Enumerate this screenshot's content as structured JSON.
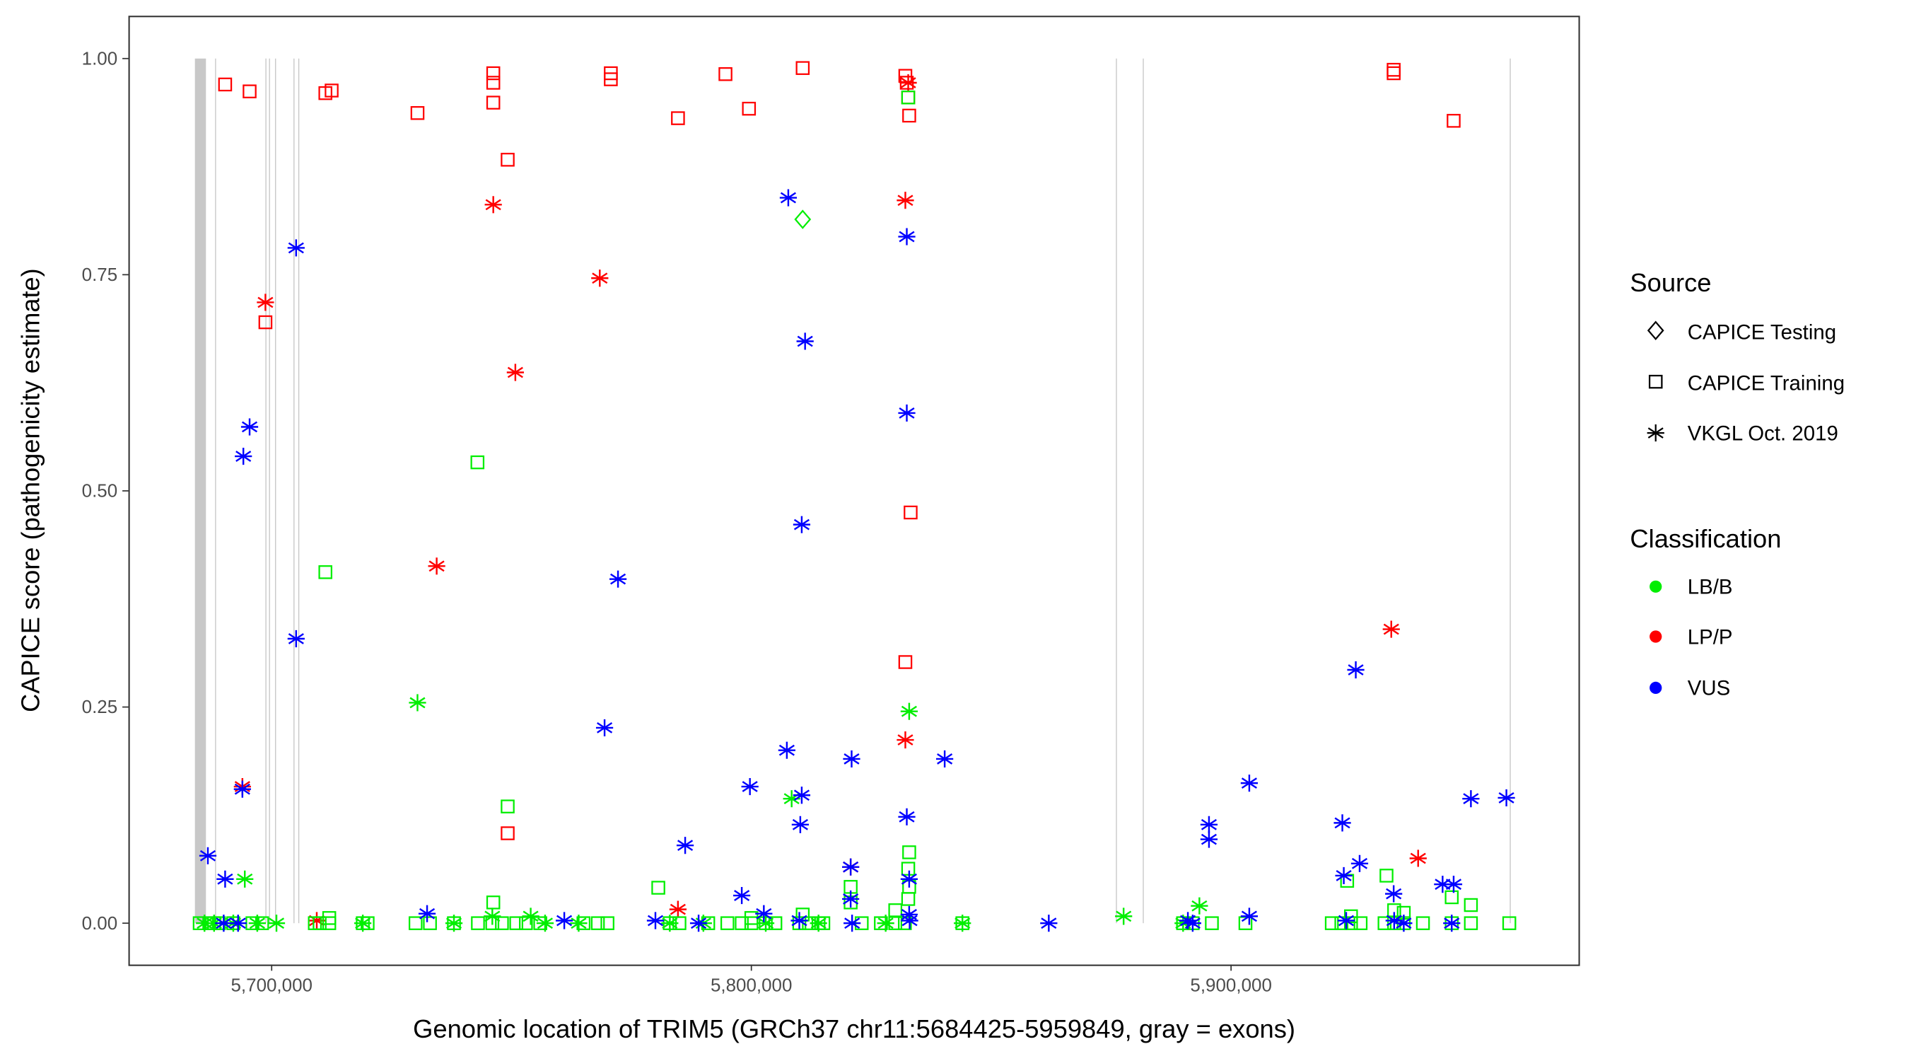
{
  "chart_data": {
    "type": "scatter",
    "xlabel": "Genomic location of TRIM5 (GRCh37 chr11:5684425-5959849, gray = exons)",
    "ylabel": "CAPICE score (pathogenicity estimate)",
    "xlim": [
      5668000,
      5970000
    ],
    "ylim": [
      -0.047,
      1.05
    ],
    "x_ticks": [
      5700000,
      5800000,
      5900000
    ],
    "x_tick_labels": [
      "5,700,000",
      "5,800,000",
      "5,900,000"
    ],
    "y_ticks": [
      0,
      0.25,
      0.5,
      0.75,
      1.0
    ],
    "y_tick_labels": [
      "0.00",
      "0.25",
      "0.50",
      "0.75",
      "1.00"
    ],
    "grid": false,
    "exons": [
      [
        5684000,
        5686300
      ],
      [
        5688200,
        5688300
      ],
      [
        5698700,
        5698800
      ],
      [
        5699450,
        5699550
      ],
      [
        5700700,
        5700800
      ],
      [
        5704550,
        5704650
      ],
      [
        5705550,
        5705650
      ],
      [
        5876000,
        5876100
      ],
      [
        5881600,
        5881700
      ],
      [
        5958100,
        5958200
      ]
    ],
    "exon_color": "#c8c8c8",
    "legend_position": "right",
    "legend": {
      "source_title": "Source",
      "source_items": [
        {
          "label": "CAPICE Testing",
          "shape": "diamond"
        },
        {
          "label": "CAPICE Training",
          "shape": "square"
        },
        {
          "label": "VKGL Oct. 2019",
          "shape": "asterisk"
        }
      ],
      "class_title": "Classification",
      "class_items": [
        {
          "label": "LB/B",
          "color": "#00ee00"
        },
        {
          "label": "LP/P",
          "color": "#ff0000"
        },
        {
          "label": "VUS",
          "color": "#0000ff"
        }
      ]
    },
    "series": [
      {
        "source": "CAPICE Training",
        "classification": "LP/P",
        "points": [
          [
            5690300,
            0.97
          ],
          [
            5695400,
            0.962
          ],
          [
            5711200,
            0.96
          ],
          [
            5712500,
            0.963
          ],
          [
            5730400,
            0.937
          ],
          [
            5746200,
            0.983
          ],
          [
            5746200,
            0.972
          ],
          [
            5746200,
            0.949
          ],
          [
            5749200,
            0.883
          ],
          [
            5770700,
            0.983
          ],
          [
            5770700,
            0.976
          ],
          [
            5784700,
            0.931
          ],
          [
            5794600,
            0.982
          ],
          [
            5799500,
            0.942
          ],
          [
            5810700,
            0.989
          ],
          [
            5832100,
            0.98
          ],
          [
            5832400,
            0.972
          ],
          [
            5832700,
            0.955
          ],
          [
            5832900,
            0.934
          ],
          [
            5698700,
            0.695
          ],
          [
            5749200,
            0.104
          ],
          [
            5833200,
            0.475
          ],
          [
            5832100,
            0.302
          ],
          [
            5933900,
            0.987
          ],
          [
            5933900,
            0.983
          ],
          [
            5946400,
            0.928
          ]
        ]
      },
      {
        "source": "VKGL Oct. 2019",
        "classification": "LP/P",
        "points": [
          [
            5698700,
            0.718
          ],
          [
            5693900,
            0.158
          ],
          [
            5746200,
            0.831
          ],
          [
            5768400,
            0.746
          ],
          [
            5750800,
            0.637
          ],
          [
            5734400,
            0.413
          ],
          [
            5832100,
            0.836
          ],
          [
            5832700,
            0.972
          ],
          [
            5832100,
            0.212
          ],
          [
            5933400,
            0.34
          ],
          [
            5939000,
            0.075
          ],
          [
            5784700,
            0.016
          ],
          [
            5709400,
            0.003
          ],
          [
            5820700,
            0.065
          ]
        ]
      },
      {
        "source": "CAPICE Training",
        "classification": "LB/B",
        "points": [
          [
            5711200,
            0.406
          ],
          [
            5742900,
            0.533
          ],
          [
            5749200,
            0.135
          ],
          [
            5780600,
            0.041
          ],
          [
            5746200,
            0.024
          ],
          [
            5832900,
            0.082
          ],
          [
            5832700,
            0.063
          ],
          [
            5832900,
            0.042
          ],
          [
            5832700,
            0.028
          ],
          [
            5832700,
            0.955
          ],
          [
            5932400,
            0.055
          ],
          [
            5924200,
            0.049
          ],
          [
            5950000,
            0.021
          ],
          [
            5820700,
            0.042
          ],
          [
            5820700,
            0.024
          ],
          [
            5810700,
            0.01
          ],
          [
            5830000,
            0.015
          ],
          [
            5685000,
            0
          ],
          [
            5687000,
            0
          ],
          [
            5688000,
            0
          ],
          [
            5689000,
            0
          ],
          [
            5692000,
            0
          ],
          [
            5696000,
            0
          ],
          [
            5698000,
            0
          ],
          [
            5709000,
            0
          ],
          [
            5710000,
            0
          ],
          [
            5712000,
            0
          ],
          [
            5712000,
            0.006
          ],
          [
            5719000,
            0
          ],
          [
            5720000,
            0
          ],
          [
            5730000,
            0
          ],
          [
            5733000,
            0
          ],
          [
            5738000,
            0
          ],
          [
            5743000,
            0
          ],
          [
            5746000,
            0
          ],
          [
            5748000,
            0
          ],
          [
            5751000,
            0
          ],
          [
            5753000,
            0
          ],
          [
            5756000,
            0
          ],
          [
            5765000,
            0
          ],
          [
            5768000,
            0
          ],
          [
            5770000,
            0
          ],
          [
            5783000,
            0
          ],
          [
            5785000,
            0
          ],
          [
            5791000,
            0
          ],
          [
            5795000,
            0
          ],
          [
            5798000,
            0
          ],
          [
            5800000,
            0
          ],
          [
            5800000,
            0.006
          ],
          [
            5803000,
            0
          ],
          [
            5805000,
            0
          ],
          [
            5810000,
            0
          ],
          [
            5812000,
            0
          ],
          [
            5814000,
            0
          ],
          [
            5815000,
            0
          ],
          [
            5823000,
            0
          ],
          [
            5827000,
            0
          ],
          [
            5830000,
            0
          ],
          [
            5832000,
            0
          ],
          [
            5844000,
            0
          ],
          [
            5890000,
            0
          ],
          [
            5892000,
            0
          ],
          [
            5896000,
            0
          ],
          [
            5903000,
            0
          ],
          [
            5921000,
            0
          ],
          [
            5923000,
            0
          ],
          [
            5925000,
            0
          ],
          [
            5925000,
            0.008
          ],
          [
            5927000,
            0
          ],
          [
            5932000,
            0
          ],
          [
            5934000,
            0
          ],
          [
            5934000,
            0.015
          ],
          [
            5936000,
            0
          ],
          [
            5936000,
            0.012
          ],
          [
            5940000,
            0
          ],
          [
            5946000,
            0
          ],
          [
            5946000,
            0.03
          ],
          [
            5950000,
            0
          ],
          [
            5958000,
            0
          ]
        ]
      },
      {
        "source": "VKGL Oct. 2019",
        "classification": "LB/B",
        "points": [
          [
            5730400,
            0.255
          ],
          [
            5832900,
            0.245
          ],
          [
            5808400,
            0.144
          ],
          [
            5694400,
            0.051
          ],
          [
            5877600,
            0.008
          ],
          [
            5893400,
            0.02
          ],
          [
            5686000,
            0
          ],
          [
            5688000,
            0
          ],
          [
            5692000,
            0
          ],
          [
            5697000,
            0
          ],
          [
            5701000,
            0
          ],
          [
            5719000,
            0
          ],
          [
            5738000,
            0
          ],
          [
            5746000,
            0.008
          ],
          [
            5754000,
            0.008
          ],
          [
            5757000,
            0
          ],
          [
            5764000,
            0
          ],
          [
            5783000,
            0
          ],
          [
            5790000,
            0
          ],
          [
            5803000,
            0
          ],
          [
            5814000,
            0
          ],
          [
            5828000,
            0
          ],
          [
            5844000,
            0
          ],
          [
            5890000,
            0
          ]
        ]
      },
      {
        "source": "CAPICE Testing",
        "classification": "LB/B",
        "points": [
          [
            5810700,
            0.814
          ]
        ]
      },
      {
        "source": "VKGL Oct. 2019",
        "classification": "VUS",
        "points": [
          [
            5686700,
            0.078
          ],
          [
            5690300,
            0.051
          ],
          [
            5693900,
            0.155
          ],
          [
            5694100,
            0.54
          ],
          [
            5695400,
            0.574
          ],
          [
            5705100,
            0.781
          ],
          [
            5705100,
            0.329
          ],
          [
            5732400,
            0.011
          ],
          [
            5769400,
            0.226
          ],
          [
            5772200,
            0.398
          ],
          [
            5786200,
            0.09
          ],
          [
            5798000,
            0.032
          ],
          [
            5799700,
            0.158
          ],
          [
            5802600,
            0.011
          ],
          [
            5807400,
            0.2
          ],
          [
            5807700,
            0.839
          ],
          [
            5810500,
            0.461
          ],
          [
            5811200,
            0.673
          ],
          [
            5810500,
            0.148
          ],
          [
            5810200,
            0.114
          ],
          [
            5820900,
            0.19
          ],
          [
            5820700,
            0.028
          ],
          [
            5820700,
            0.065
          ],
          [
            5832400,
            0.794
          ],
          [
            5832400,
            0.59
          ],
          [
            5832400,
            0.123
          ],
          [
            5832900,
            0.051
          ],
          [
            5832900,
            0.01
          ],
          [
            5840300,
            0.19
          ],
          [
            5895400,
            0.114
          ],
          [
            5895400,
            0.097
          ],
          [
            5903800,
            0.162
          ],
          [
            5903800,
            0.008
          ],
          [
            5923200,
            0.116
          ],
          [
            5923500,
            0.055
          ],
          [
            5926000,
            0.293
          ],
          [
            5926800,
            0.069
          ],
          [
            5933900,
            0.034
          ],
          [
            5944100,
            0.045
          ],
          [
            5946400,
            0.045
          ],
          [
            5950000,
            0.144
          ],
          [
            5957400,
            0.145
          ],
          [
            5690000,
            0
          ],
          [
            5693000,
            0
          ],
          [
            5761000,
            0.003
          ],
          [
            5780000,
            0.003
          ],
          [
            5789000,
            0
          ],
          [
            5810000,
            0.003
          ],
          [
            5821000,
            0
          ],
          [
            5833000,
            0.003
          ],
          [
            5862000,
            0
          ],
          [
            5891000,
            0.003
          ],
          [
            5892000,
            0
          ],
          [
            5924000,
            0.003
          ],
          [
            5934000,
            0.003
          ],
          [
            5936000,
            0
          ],
          [
            5946000,
            0
          ]
        ]
      }
    ]
  }
}
